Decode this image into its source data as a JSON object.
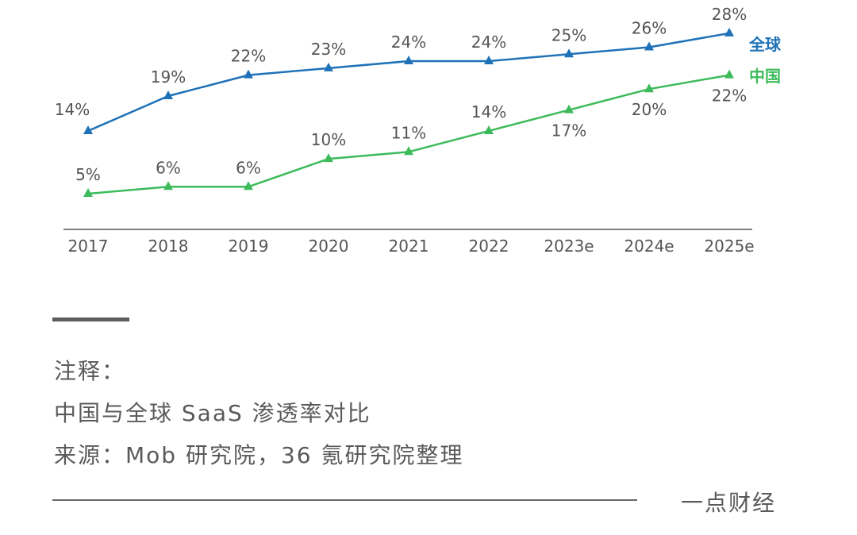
{
  "chart_data": {
    "type": "line",
    "title": "",
    "xlabel": "",
    "ylabel": "",
    "ylim": [
      0,
      32
    ],
    "grid": false,
    "categories": [
      "2017",
      "2018",
      "2019",
      "2020",
      "2021",
      "2022",
      "2023e",
      "2024e",
      "2025e"
    ],
    "series": [
      {
        "name": "全球",
        "color": "#1f72b8",
        "values": [
          14,
          19,
          22,
          23,
          24,
          24,
          25,
          26,
          28
        ],
        "labels": [
          "14%",
          "19%",
          "22%",
          "23%",
          "24%",
          "24%",
          "25%",
          "26%",
          "28%"
        ]
      },
      {
        "name": "中国",
        "color": "#3dbb5a",
        "values": [
          5,
          6,
          6,
          10,
          11,
          14,
          17,
          20,
          22
        ],
        "labels": [
          "5%",
          "6%",
          "6%",
          "10%",
          "11%",
          "14%",
          "17%",
          "20%",
          "22%"
        ]
      }
    ],
    "legend_placement": "right"
  },
  "notes": {
    "heading": "注释：",
    "caption": "中国与全球 SaaS 渗透率对比",
    "source": "来源：Mob 研究院，36 氪研究院整理"
  },
  "brand": "一点财经"
}
